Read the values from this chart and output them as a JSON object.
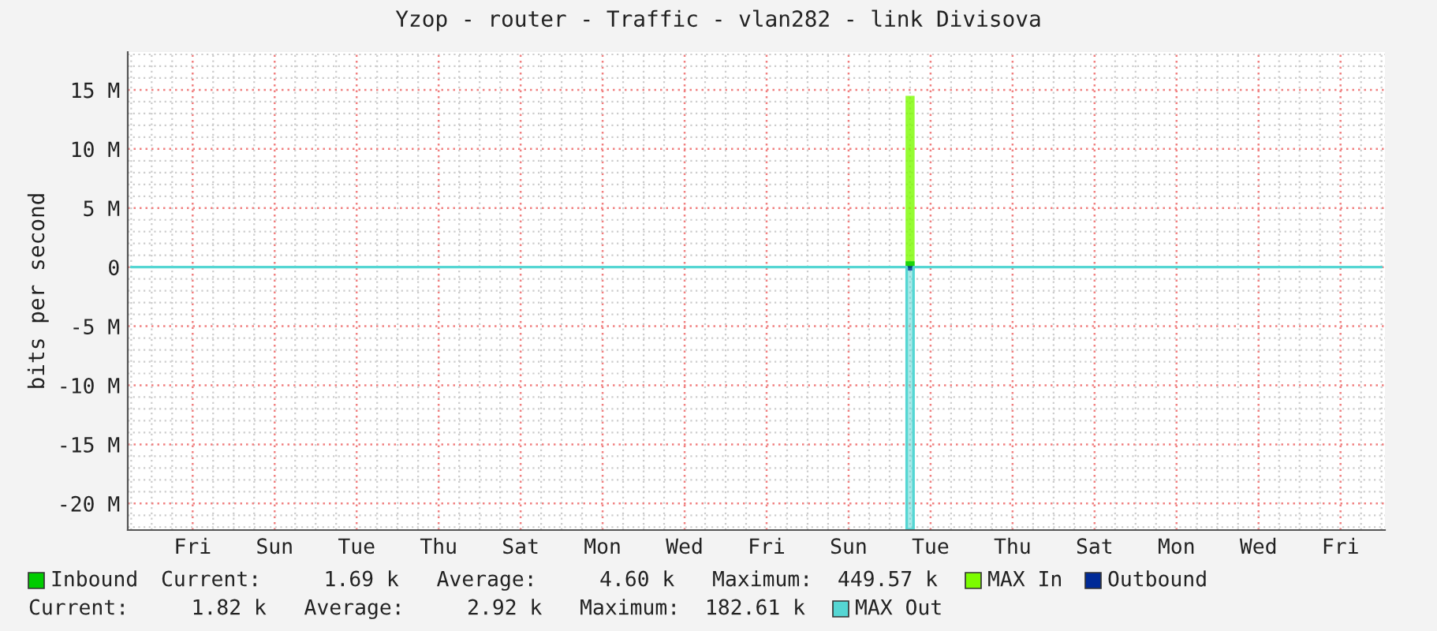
{
  "chart_data": {
    "type": "step",
    "title": "Yzop - router - Traffic - vlan282 - link Divisova",
    "ylabel": "bits per second",
    "categories": [
      null,
      null,
      null,
      null,
      null,
      null,
      null,
      null,
      null,
      "Fri",
      null,
      null,
      null,
      null,
      null,
      null,
      null,
      null,
      null,
      null,
      null,
      "Sun",
      null,
      null,
      null,
      null,
      null,
      null,
      null,
      null,
      null,
      null,
      null,
      "Tue",
      null,
      null,
      null,
      null,
      null,
      null,
      null,
      null,
      null,
      null,
      null,
      "Thu",
      null,
      null,
      null,
      null,
      null,
      null,
      null,
      null,
      null,
      null,
      null,
      "Sat",
      null,
      null,
      null,
      null,
      null,
      null,
      null,
      null,
      null,
      null,
      null,
      "Mon",
      null,
      null,
      null,
      null,
      null,
      null,
      null,
      null,
      null,
      null,
      null,
      "Wed",
      null,
      null,
      null,
      null,
      null,
      null,
      null,
      null,
      null,
      null,
      null,
      "Fri",
      null,
      null,
      null,
      null,
      null,
      null,
      null,
      null,
      null,
      null,
      null,
      "Sun",
      null,
      null,
      null,
      null,
      null,
      null,
      null,
      null,
      null,
      null,
      null,
      "Tue",
      null,
      null,
      null,
      null,
      null,
      null,
      null,
      null,
      null,
      null,
      null,
      "Thu",
      null,
      null,
      null,
      null,
      null,
      null,
      null,
      null,
      null,
      null,
      null,
      "Sat",
      null,
      null,
      null,
      null,
      null,
      null,
      null,
      null,
      null,
      null,
      null,
      "Mon",
      null,
      null,
      null,
      null,
      null,
      null,
      null,
      null,
      null,
      null,
      null,
      "Wed",
      null,
      null,
      null,
      null,
      null,
      null,
      null,
      null,
      null,
      null,
      null,
      "Fri",
      null,
      null,
      null,
      null,
      null,
      null
    ],
    "ylim": [
      -22.25,
      18.2
    ],
    "yticks": [
      {
        "value": -20,
        "label": "-20 M"
      },
      {
        "value": -15,
        "label": "-15 M"
      },
      {
        "value": -10,
        "label": "-10 M"
      },
      {
        "value": -5,
        "label": "-5 M"
      },
      0,
      {
        "value": 5,
        "label": "5 M"
      },
      {
        "value": 10,
        "label": "10 M"
      },
      {
        "value": 15,
        "label": "15 M"
      }
    ],
    "grid": true,
    "legend": "bottom",
    "series": [
      {
        "name": "MAX Out",
        "color": "#55d6d3",
        "values": [
          0,
          0,
          0,
          0,
          0,
          0,
          0,
          0,
          0,
          0,
          0,
          0,
          0,
          0,
          0,
          0,
          0,
          0,
          0,
          0,
          0,
          0,
          0,
          0,
          0,
          0,
          0,
          0,
          0,
          0,
          0,
          0,
          0,
          0,
          0,
          0,
          0,
          0,
          0,
          0,
          0,
          0,
          0,
          0,
          0,
          0,
          0,
          0,
          0,
          0,
          0,
          0,
          0,
          0,
          0,
          0,
          0,
          0,
          0,
          0,
          0,
          0,
          0,
          0,
          0,
          0,
          0,
          0,
          0,
          0,
          0,
          0,
          0,
          0,
          0,
          0,
          0,
          0,
          0,
          0,
          0,
          0,
          0,
          0,
          0,
          0,
          0,
          0,
          0,
          0,
          0,
          0,
          0,
          0,
          0,
          0,
          0,
          0,
          0,
          0,
          0,
          0,
          0,
          0,
          0,
          0,
          0,
          0,
          0,
          0,
          0,
          0,
          0,
          0,
          -22.2,
          0,
          0,
          0,
          0,
          0,
          0,
          0,
          0,
          0,
          0,
          0,
          0,
          0,
          0,
          0,
          0,
          0,
          0,
          0,
          0,
          0,
          0,
          0,
          0,
          0,
          0,
          0,
          0,
          0,
          0,
          0,
          0,
          0,
          0,
          0,
          0,
          0,
          0,
          0,
          0,
          0,
          0,
          0,
          0,
          0,
          0,
          0,
          0,
          0,
          0,
          0,
          0,
          0,
          0,
          0,
          0,
          0,
          0,
          0,
          0,
          0,
          0,
          0,
          0,
          0,
          0,
          0,
          0,
          0
        ]
      },
      {
        "name": "MAX In",
        "type": "bar",
        "color": "#7cfc00",
        "values": [
          null,
          null,
          null,
          null,
          null,
          null,
          null,
          null,
          null,
          null,
          null,
          null,
          null,
          null,
          null,
          null,
          null,
          null,
          null,
          null,
          null,
          null,
          null,
          null,
          null,
          null,
          null,
          null,
          null,
          null,
          null,
          null,
          null,
          null,
          null,
          null,
          null,
          null,
          null,
          null,
          null,
          null,
          null,
          null,
          null,
          null,
          null,
          null,
          null,
          null,
          null,
          null,
          null,
          null,
          null,
          null,
          null,
          null,
          null,
          null,
          null,
          null,
          null,
          null,
          null,
          null,
          null,
          null,
          null,
          null,
          null,
          null,
          null,
          null,
          null,
          null,
          null,
          null,
          null,
          null,
          null,
          null,
          null,
          null,
          null,
          null,
          null,
          null,
          null,
          null,
          null,
          null,
          null,
          null,
          null,
          null,
          null,
          null,
          null,
          null,
          null,
          null,
          null,
          null,
          null,
          null,
          null,
          null,
          null,
          null,
          null,
          null,
          null,
          null,
          14.4,
          null,
          null,
          null,
          null,
          null,
          null,
          null,
          null,
          null,
          null,
          null,
          null,
          null,
          null,
          null,
          null,
          null,
          null,
          null,
          null,
          null,
          null,
          null,
          null,
          null,
          null,
          null,
          null,
          null,
          null,
          null,
          null,
          null,
          null,
          null,
          null,
          null,
          null,
          null,
          null,
          null,
          null,
          null,
          null,
          null,
          null,
          null,
          null,
          null,
          null,
          null,
          null,
          null,
          null,
          null,
          null,
          null,
          null,
          null,
          null,
          null,
          null,
          null,
          null,
          null,
          null,
          null,
          null,
          null
        ]
      },
      {
        "name": "Inbound",
        "type": "bar",
        "color": "#00cc00",
        "values": [
          null,
          null,
          null,
          null,
          null,
          null,
          null,
          null,
          null,
          null,
          null,
          null,
          null,
          null,
          null,
          null,
          null,
          null,
          null,
          null,
          null,
          null,
          null,
          null,
          null,
          null,
          null,
          null,
          null,
          null,
          null,
          null,
          null,
          null,
          null,
          null,
          null,
          null,
          null,
          null,
          null,
          null,
          null,
          null,
          null,
          null,
          null,
          null,
          null,
          null,
          null,
          null,
          null,
          null,
          null,
          null,
          null,
          null,
          null,
          null,
          null,
          null,
          null,
          null,
          null,
          null,
          null,
          null,
          null,
          null,
          null,
          null,
          null,
          null,
          null,
          null,
          null,
          null,
          null,
          null,
          null,
          null,
          null,
          null,
          null,
          null,
          null,
          null,
          null,
          null,
          null,
          null,
          null,
          null,
          null,
          null,
          null,
          null,
          null,
          null,
          null,
          null,
          null,
          null,
          null,
          null,
          null,
          null,
          null,
          null,
          null,
          null,
          null,
          null,
          0.4,
          null,
          null,
          null,
          null,
          null,
          null,
          null,
          null,
          null,
          null,
          null,
          null,
          null,
          null,
          null,
          null,
          null,
          null,
          null,
          null,
          null,
          null,
          null,
          null,
          null,
          null,
          null,
          null,
          null,
          null,
          null,
          null,
          null,
          null,
          null,
          null,
          null,
          null,
          null,
          null,
          null,
          null,
          null,
          null,
          null,
          null,
          null,
          null,
          null,
          null,
          null,
          null,
          null,
          null,
          null,
          null,
          null,
          null,
          null,
          null,
          null,
          null,
          null,
          null,
          null,
          null,
          null,
          null,
          null
        ]
      },
      {
        "name": "Outbound",
        "type": "bar",
        "color": "#002a97",
        "values": [
          null,
          null,
          null,
          null,
          null,
          null,
          null,
          null,
          null,
          null,
          null,
          null,
          null,
          null,
          null,
          null,
          null,
          null,
          null,
          null,
          null,
          null,
          null,
          null,
          null,
          null,
          null,
          null,
          null,
          null,
          null,
          null,
          null,
          null,
          null,
          null,
          null,
          null,
          null,
          null,
          null,
          null,
          null,
          null,
          null,
          null,
          null,
          null,
          null,
          null,
          null,
          null,
          null,
          null,
          null,
          null,
          null,
          null,
          null,
          null,
          null,
          null,
          null,
          null,
          null,
          null,
          null,
          null,
          null,
          null,
          null,
          null,
          null,
          null,
          null,
          null,
          null,
          null,
          null,
          null,
          null,
          null,
          null,
          null,
          null,
          null,
          null,
          null,
          null,
          null,
          null,
          null,
          null,
          null,
          null,
          null,
          null,
          null,
          null,
          null,
          null,
          null,
          null,
          null,
          null,
          null,
          null,
          null,
          null,
          null,
          null,
          null,
          null,
          null,
          -0.2,
          null,
          null,
          null,
          null,
          null,
          null,
          null,
          null,
          null,
          null,
          null,
          null,
          null,
          null,
          null,
          null,
          null,
          null,
          null,
          null,
          null,
          null,
          null,
          null,
          null,
          null,
          null,
          null,
          null,
          null,
          null,
          null,
          null,
          null,
          null,
          null,
          null,
          null,
          null,
          null,
          null,
          null,
          null,
          null,
          null,
          null,
          null,
          null,
          null,
          null,
          null,
          null,
          null,
          null,
          null,
          null,
          null,
          null,
          null,
          null,
          null,
          null,
          null,
          null,
          null,
          null,
          null,
          null,
          null
        ]
      }
    ],
    "annotations": [
      "Current:     1.69 k   Average:     4.60 k   Maximum:  449.57 k",
      "Current:     1.82 k   Average:     2.92 k   Maximum:  182.61 k"
    ]
  }
}
